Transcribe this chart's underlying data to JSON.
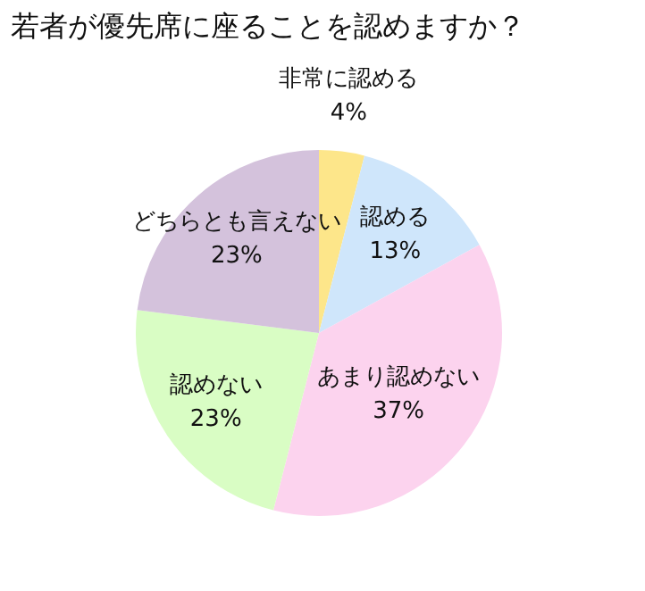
{
  "chart_data": {
    "type": "pie",
    "title": "若者が優先席に座ることを認めますか？",
    "categories": [
      "非常に認める",
      "認める",
      "あまり認めない",
      "認めない",
      "どちらとも言えない"
    ],
    "values": [
      4,
      13,
      37,
      23,
      23
    ],
    "value_labels": [
      "4%",
      "13%",
      "37%",
      "23%",
      "23%"
    ],
    "colors": [
      "#fde68a",
      "#cfe6fb",
      "#fcd3ee",
      "#d9fdc4",
      "#d4c2dc"
    ],
    "legend": false
  }
}
